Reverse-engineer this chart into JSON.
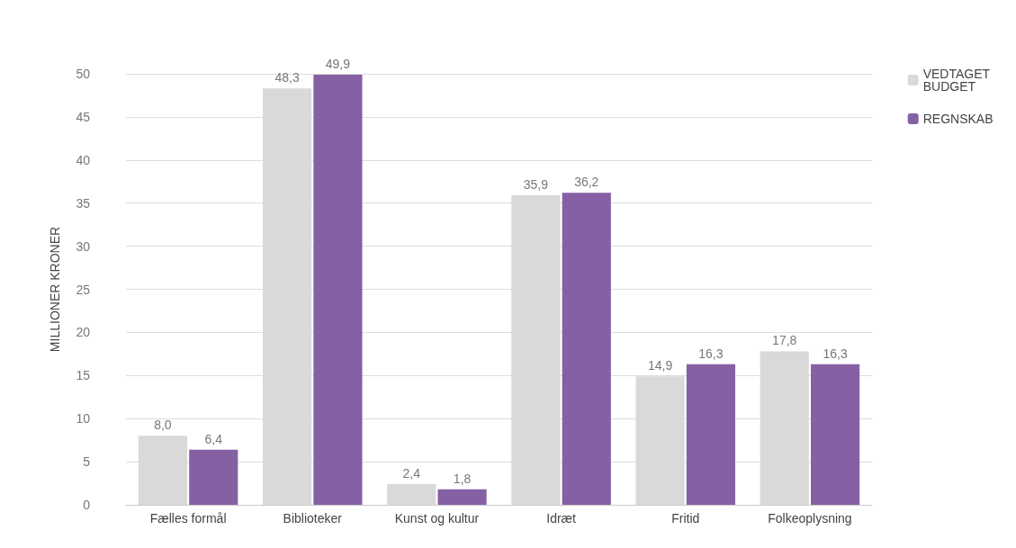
{
  "chart_data": {
    "type": "bar",
    "ylabel": "MILLIONER KRONER",
    "categories": [
      "Fælles formål",
      "Biblioteker",
      "Kunst og kultur",
      "Idræt",
      "Fritid",
      "Folkeoplysning"
    ],
    "series": [
      {
        "name": "VEDTAGET BUDGET",
        "color": "#d9d9d9",
        "values": [
          8.0,
          48.3,
          2.4,
          35.9,
          14.9,
          17.8
        ],
        "value_labels": [
          "8,0",
          "48,3",
          "2,4",
          "35,9",
          "14,9",
          "17,8"
        ]
      },
      {
        "name": "REGNSKAB",
        "color": "#8560a3",
        "values": [
          6.4,
          49.9,
          1.8,
          36.2,
          16.3,
          16.3
        ],
        "value_labels": [
          "6,4",
          "49,9",
          "1,8",
          "36,2",
          "16,3",
          "16,3"
        ]
      }
    ],
    "ylim": [
      0,
      50
    ],
    "yticks": [
      0,
      5,
      10,
      15,
      20,
      25,
      30,
      35,
      40,
      45,
      50
    ],
    "grid": "y",
    "legend": "top right"
  }
}
